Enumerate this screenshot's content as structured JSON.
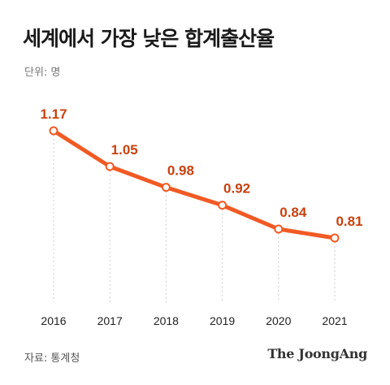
{
  "title": "세계에서 가장 낮은 합계출산율",
  "unit_label": "단위: 명",
  "source": "자료: 통계청",
  "logo": "The JoongAng",
  "colors": {
    "line": "#f15a24",
    "label": "#c8410f",
    "grid": "#cccccc"
  },
  "chart_data": {
    "type": "line",
    "categories": [
      "2016",
      "2017",
      "2018",
      "2019",
      "2020",
      "2021"
    ],
    "values": [
      1.17,
      1.05,
      0.98,
      0.92,
      0.84,
      0.81
    ],
    "data_labels": [
      "1.17",
      "1.05",
      "0.98",
      "0.92",
      "0.84",
      "0.81"
    ],
    "title": "세계에서 가장 낮은 합계출산율",
    "xlabel": "",
    "ylabel": "",
    "unit": "명",
    "ylim": [
      0.6,
      1.2
    ],
    "grid": "vertical dotted"
  }
}
